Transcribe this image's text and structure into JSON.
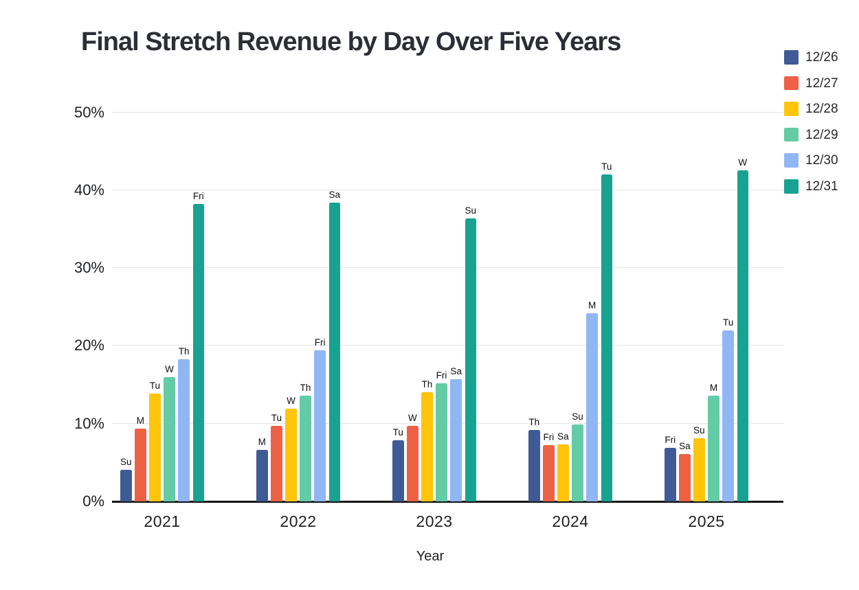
{
  "title": "Final Stretch Revenue by Day Over Five Years",
  "chart_data": {
    "type": "bar",
    "title": "Final Stretch Revenue by Day Over Five Years",
    "xlabel": "Year",
    "ylabel": "",
    "ylim": [
      0,
      50
    ],
    "grid": "horizontal",
    "legend_position": "top-right",
    "yticks": [
      {
        "value": 0,
        "label": "0%"
      },
      {
        "value": 10,
        "label": "10%"
      },
      {
        "value": 20,
        "label": "20%"
      },
      {
        "value": 30,
        "label": "30%"
      },
      {
        "value": 40,
        "label": "40%"
      },
      {
        "value": 50,
        "label": "50%"
      }
    ],
    "categories": [
      "2021",
      "2022",
      "2023",
      "2024",
      "2025"
    ],
    "series": [
      {
        "name": "12/26",
        "color": "#3F5B95",
        "values": [
          4.1,
          6.6,
          7.9,
          9.2,
          6.9
        ],
        "day_labels": [
          "Su",
          "M",
          "Tu",
          "Th",
          "Fri"
        ]
      },
      {
        "name": "12/27",
        "color": "#EE6144",
        "values": [
          9.4,
          9.7,
          9.7,
          7.2,
          6.1
        ],
        "day_labels": [
          "M",
          "Tu",
          "W",
          "Fri",
          "Sa"
        ]
      },
      {
        "name": "12/28",
        "color": "#FEC50B",
        "values": [
          13.9,
          11.9,
          14.0,
          7.3,
          8.1
        ],
        "day_labels": [
          "Tu",
          "W",
          "Th",
          "Sa",
          "Su"
        ]
      },
      {
        "name": "12/29",
        "color": "#63CBA6",
        "values": [
          16.0,
          13.6,
          15.2,
          9.9,
          13.6
        ],
        "day_labels": [
          "W",
          "Th",
          "Fri",
          "Su",
          "M"
        ]
      },
      {
        "name": "12/30",
        "color": "#90B7F3",
        "values": [
          18.3,
          19.4,
          15.7,
          24.2,
          22.0
        ],
        "day_labels": [
          "Th",
          "Fri",
          "Sa",
          "M",
          "Tu"
        ]
      },
      {
        "name": "12/31",
        "color": "#17A291",
        "values": [
          38.2,
          38.4,
          36.4,
          42.0,
          42.5
        ],
        "day_labels": [
          "Fri",
          "Sa",
          "Su",
          "Tu",
          "W"
        ]
      }
    ]
  },
  "legend": {
    "items": [
      {
        "label": "12/26",
        "color": "#3F5B95"
      },
      {
        "label": "12/27",
        "color": "#EE6144"
      },
      {
        "label": "12/28",
        "color": "#FEC50B"
      },
      {
        "label": "12/29",
        "color": "#63CBA6"
      },
      {
        "label": "12/30",
        "color": "#90B7F3"
      },
      {
        "label": "12/31",
        "color": "#17A291"
      }
    ]
  }
}
